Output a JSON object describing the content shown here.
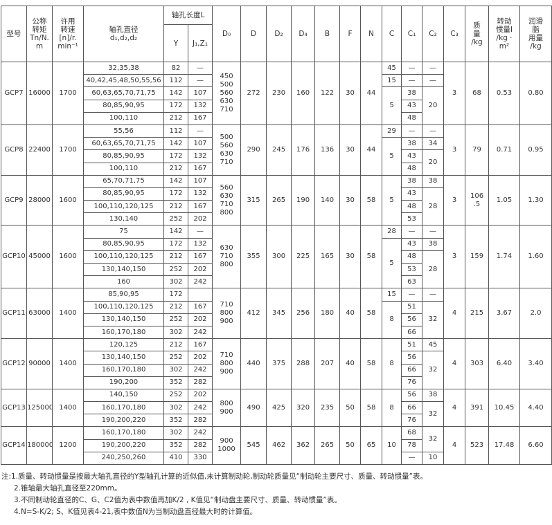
{
  "header": {
    "model": "型号",
    "torque": "公称\n转矩\nTn/N.\nm",
    "speed": "许用\n转速\n[n]/r.\nmin⁻¹",
    "bore": "轴孔直径\nd₁,d₂,d₂",
    "length": "轴孔长度L",
    "y": "Y",
    "j": "J₁,Z₁",
    "d0": "D₀",
    "d": "D",
    "d2": "D₂",
    "d4": "D₄",
    "b": "B",
    "f": "F",
    "n": "N",
    "c": "C",
    "c1": "C₁",
    "c2": "C₂",
    "c3": "C₃",
    "mass": "质\n量\n/kg",
    "inertia": "转动\n惯量I\n/kg ·\nm²",
    "grease": "润滑\n脂\n用量\n/kg"
  },
  "groups": [
    {
      "model": "GCP7",
      "torque": "16000",
      "speed": "1700",
      "rows": [
        [
          "32,35,38",
          "82",
          "—"
        ],
        [
          "40,42,45,48,50,55,56",
          "112",
          "—"
        ],
        [
          "60,63,65,70,71,75",
          "142",
          "107"
        ],
        [
          "80,85,90,95",
          "172",
          "132"
        ],
        [
          "100,110",
          "212",
          "167"
        ]
      ],
      "d0": "450\n500\n560\n630\n710",
      "d": "272",
      "d2": "230",
      "d4": "160",
      "b": "122",
      "f": "30",
      "n": "44",
      "c": [
        {
          "v": "45",
          "span": 1
        },
        {
          "v": "15",
          "span": 1
        },
        {
          "v": "5",
          "span": 3
        }
      ],
      "c1": [
        "—",
        "—",
        "38",
        "43",
        "48"
      ],
      "c2": [
        {
          "v": "—",
          "span": 1
        },
        {
          "v": "—",
          "span": 1
        },
        {
          "v": "20",
          "span": 3
        }
      ],
      "c3": "3",
      "mass": "68",
      "inertia": "0.53",
      "grease": "0.80"
    },
    {
      "model": "GCP8",
      "torque": "22400",
      "speed": "1700",
      "rows": [
        [
          "55,56",
          "112",
          "—"
        ],
        [
          "60,63,65,70,71,75",
          "142",
          "107"
        ],
        [
          "80,85,90,95",
          "172",
          "132"
        ],
        [
          "100,110",
          "212",
          "167"
        ]
      ],
      "d0": "500\n560\n630\n710",
      "d": "290",
      "d2": "245",
      "d4": "176",
      "b": "136",
      "f": "30",
      "n": "44",
      "c": [
        {
          "v": "29",
          "span": 1
        },
        {
          "v": "5",
          "span": 3
        }
      ],
      "c1": [
        "—",
        "38",
        "43",
        "48"
      ],
      "c2": [
        {
          "v": "—",
          "span": 1
        },
        {
          "v": "34",
          "span": 1
        },
        {
          "v": "20",
          "span": 2
        }
      ],
      "c3": "3",
      "mass": "79",
      "inertia": "0.71",
      "grease": "0.95"
    },
    {
      "model": "GCP9",
      "torque": "28000",
      "speed": "1600",
      "rows": [
        [
          "65,70,71,75",
          "142",
          "107"
        ],
        [
          "80,85,90,95",
          "172",
          "132"
        ],
        [
          "100,110,120,125",
          "212",
          "167"
        ],
        [
          "130,140",
          "252",
          "202"
        ]
      ],
      "d0": "560\n630\n710\n800",
      "d": "315",
      "d2": "265",
      "d4": "190",
      "b": "140",
      "f": "30",
      "n": "58",
      "c": [
        {
          "v": "5",
          "span": 4
        }
      ],
      "c1": [
        "38",
        "43",
        "48",
        "53"
      ],
      "c2": [
        {
          "v": "38",
          "span": 1
        },
        {
          "v": "28",
          "span": 3
        }
      ],
      "c3": "3",
      "mass": "106\n.5",
      "inertia": "1.05",
      "grease": "1.30"
    },
    {
      "model": "GCP10",
      "torque": "45000",
      "speed": "1600",
      "rows": [
        [
          "75",
          "142",
          "—"
        ],
        [
          "80,85,90,95",
          "172",
          "132"
        ],
        [
          "100,110,120,125",
          "212",
          "167"
        ],
        [
          "130,140,150",
          "252",
          "202"
        ],
        [
          "160",
          "302",
          "242"
        ]
      ],
      "d0": "630\n710\n800",
      "d": "355",
      "d2": "300",
      "d4": "225",
      "b": "165",
      "f": "30",
      "n": "58",
      "c": [
        {
          "v": "28",
          "span": 1
        },
        {
          "v": "5",
          "span": 4
        }
      ],
      "c1": [
        "—",
        "43",
        "48",
        "53",
        "63"
      ],
      "c2": [
        {
          "v": "—",
          "span": 1
        },
        {
          "v": "38",
          "span": 1
        },
        {
          "v": "28",
          "span": 3
        }
      ],
      "c3": "3",
      "mass": "159",
      "inertia": "1.74",
      "grease": "1.60"
    },
    {
      "model": "GCP11",
      "torque": "63000",
      "speed": "1400",
      "rows": [
        [
          "85,90,95",
          "172",
          ""
        ],
        [
          "100,110,120,125",
          "212",
          "167"
        ],
        [
          "130,140,150",
          "252",
          "202"
        ],
        [
          "160,170,180",
          "302",
          "242"
        ]
      ],
      "d0": "710\n800\n900",
      "d": "412",
      "d2": "345",
      "d4": "256",
      "b": "180",
      "f": "40",
      "n": "58",
      "c": [
        {
          "v": "15",
          "span": 1
        },
        {
          "v": "8",
          "span": 3
        }
      ],
      "c1": [
        "—",
        "51",
        "56",
        "66"
      ],
      "c2": [
        {
          "v": "—",
          "span": 1
        },
        {
          "v": "32",
          "span": 3
        }
      ],
      "c3": "4",
      "mass": "215",
      "inertia": "3.67",
      "grease": "2.0"
    },
    {
      "model": "GCP12",
      "torque": "90000",
      "speed": "1400",
      "rows": [
        [
          "120,125",
          "212",
          "167"
        ],
        [
          "130,140,150",
          "252",
          "202"
        ],
        [
          "160,170,180",
          "302",
          "242"
        ],
        [
          "190,200",
          "352",
          "282"
        ]
      ],
      "d0": "710\n800\n900",
      "d": "440",
      "d2": "375",
      "d4": "288",
      "b": "207",
      "f": "40",
      "n": "58",
      "c": [
        {
          "v": "8",
          "span": 4
        }
      ],
      "c1": [
        "51",
        "56",
        "66",
        "76"
      ],
      "c2": [
        {
          "v": "45",
          "span": 1
        },
        {
          "v": "32",
          "span": 3
        }
      ],
      "c3": "4",
      "mass": "303",
      "inertia": "6.40",
      "grease": "3.40"
    },
    {
      "model": "GCP13",
      "torque": "125000",
      "speed": "1400",
      "rows": [
        [
          "140,150",
          "252",
          "202"
        ],
        [
          "160,170,180",
          "302",
          "242"
        ],
        [
          "190,200,220",
          "352",
          "282"
        ]
      ],
      "d0": "800\n900",
      "d": "490",
      "d2": "425",
      "d4": "320",
      "b": "235",
      "f": "50",
      "n": "58",
      "c": [
        {
          "v": "8",
          "span": 3
        }
      ],
      "c1": [
        "56",
        "66",
        "76"
      ],
      "c2": [
        {
          "v": "38",
          "span": 1
        },
        {
          "v": "32",
          "span": 2
        }
      ],
      "c3": "4",
      "mass": "391",
      "inertia": "10.45",
      "grease": "4.40"
    },
    {
      "model": "GCP14",
      "torque": "180000",
      "speed": "1200",
      "rows": [
        [
          "160,170,180",
          "302",
          "242"
        ],
        [
          "190,200,220",
          "352",
          "282"
        ],
        [
          "240,250,260",
          "410",
          "330"
        ]
      ],
      "d0": "900\n1000",
      "d": "545",
      "d2": "462",
      "d4": "362",
      "b": "265",
      "f": "50",
      "n": "65",
      "c": [
        {
          "v": "10",
          "span": 3
        }
      ],
      "c1": [
        "68",
        "78",
        "—"
      ],
      "c2": [
        {
          "v": "32",
          "span": 2
        },
        {
          "v": "10",
          "span": 1
        }
      ],
      "c3": "4",
      "mass": "523",
      "inertia": "17.48",
      "grease": "6.60"
    }
  ],
  "notes": [
    "注:1.质量、转动惯量是按最大轴孔直径的Y型轴孔计算的近似值,未计算制动轮,制动轮质量见“制动轮主要尺寸、质量、转动惯量”表。",
    "2.锥轴最大轴孔直径至220mm。",
    "3.不同制动轮直径的C、G、C2值为表中数值再加K/2 , K值见“制动盘主要尺寸、质量、转动惯量”表。",
    "4.N=S-K/2; S、K值见表4-21,表中数值N为当制动盘直径最大时的计算值。"
  ]
}
